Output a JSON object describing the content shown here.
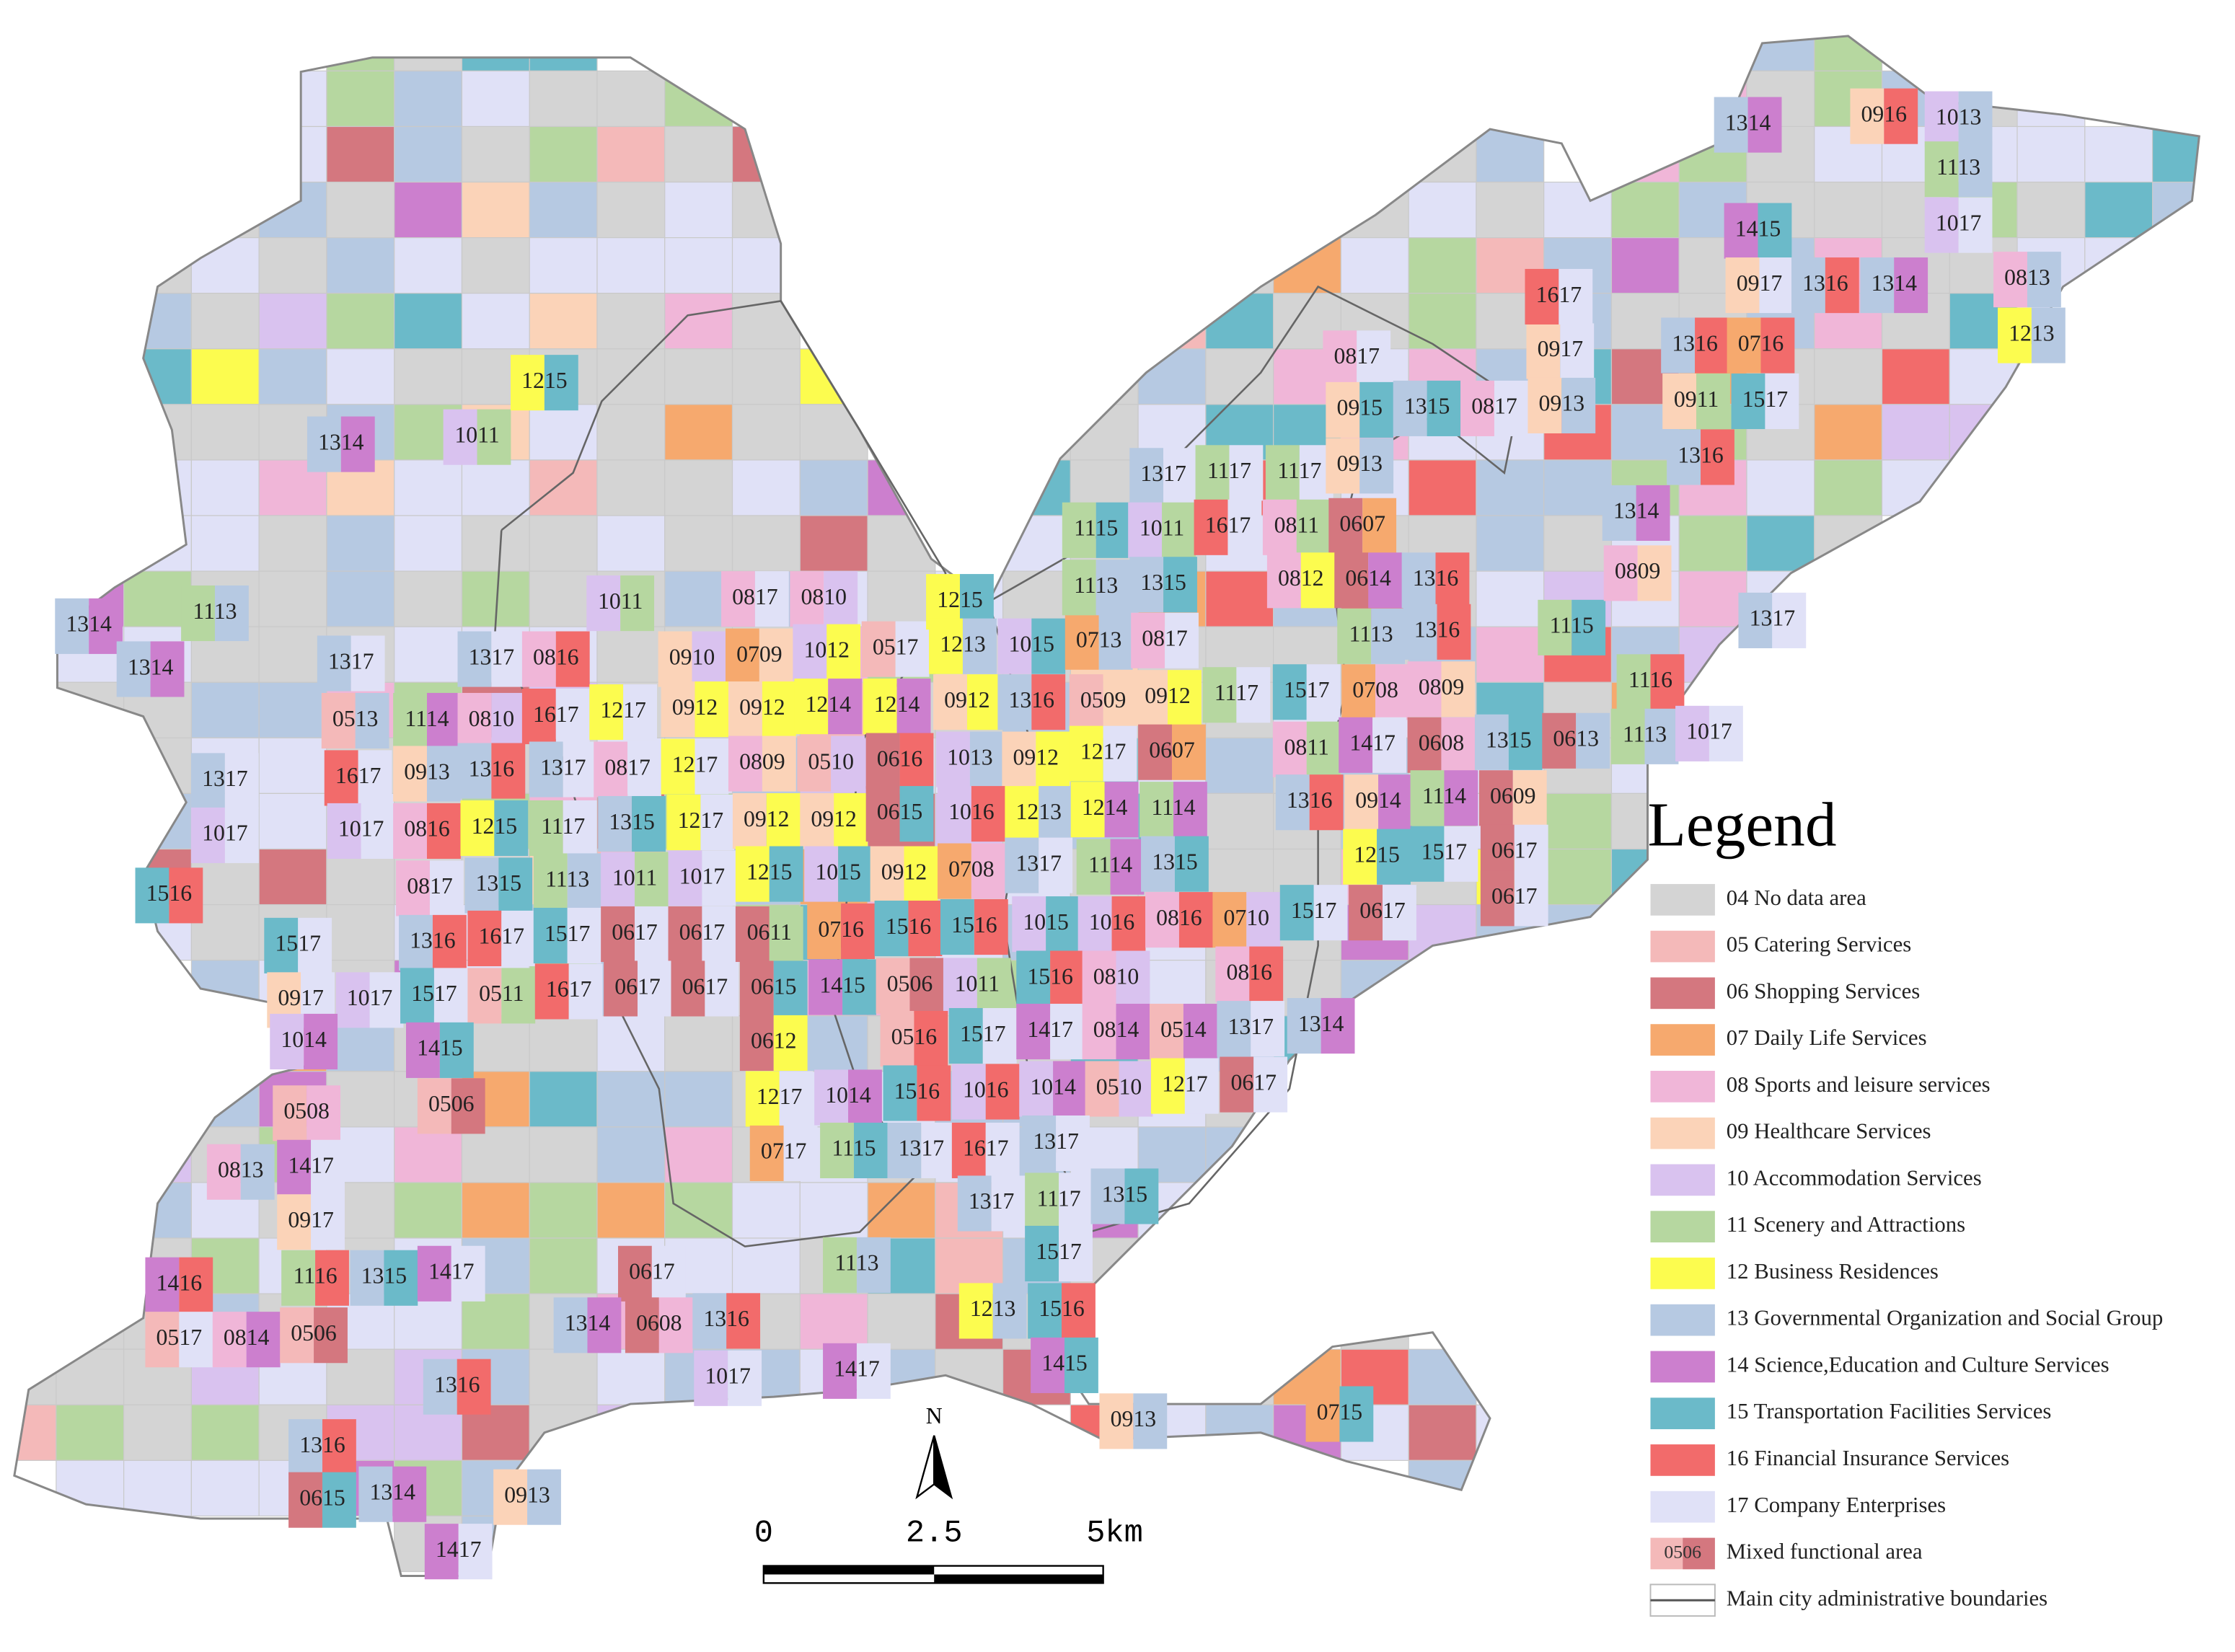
{
  "legend": {
    "title": "Legend",
    "items": [
      {
        "label": "04 No data area",
        "color": "#d4d4d4"
      },
      {
        "label": "05 Catering Services",
        "color": "#f4b9b9"
      },
      {
        "label": "06 Shopping Services",
        "color": "#d4777f"
      },
      {
        "label": "07 Daily Life Services",
        "color": "#f6a96e"
      },
      {
        "label": "08 Sports and leisure services",
        "color": "#f0b6d8"
      },
      {
        "label": "09 Healthcare Services",
        "color": "#fbd3b8"
      },
      {
        "label": "10 Accommodation Services",
        "color": "#d9c2ef"
      },
      {
        "label": "11 Scenery and Attractions",
        "color": "#b6d7a0"
      },
      {
        "label": "12 Business Residences",
        "color": "#fcfc4f"
      },
      {
        "label": "13 Governmental Organization and Social Group",
        "color": "#b6c9e2"
      },
      {
        "label": "14 Science,Education and Culture Services",
        "color": "#cc7fce"
      },
      {
        "label": "15 Transportation Facilities Services",
        "color": "#6bbac9"
      },
      {
        "label": "16 Financial Insurance Services",
        "color": "#f26b6b"
      },
      {
        "label": "17 Company Enterprises",
        "color": "#e0e1f7"
      }
    ],
    "mixed": {
      "code": "0506",
      "label": "Mixed functional area"
    },
    "boundary": {
      "label": "Main city administrative boundaries"
    }
  },
  "north": "N",
  "scale_bar": [
    "0",
    "2.5",
    "5km"
  ],
  "cell_labels": [
    "1314",
    "1113",
    "1314",
    "1317",
    "1317",
    "0816",
    "0513",
    "1114",
    "0810",
    "1617",
    "1217",
    "1317",
    "1617",
    "0913",
    "1316",
    "1317",
    "0817",
    "1017",
    "1017",
    "0816",
    "1215",
    "1117",
    "1315",
    "1516",
    "0817",
    "1315",
    "1113",
    "1011",
    "1017",
    "1517",
    "1316",
    "1617",
    "1517",
    "0617",
    "0617",
    "0917",
    "1017",
    "1517",
    "0511",
    "1617",
    "0617",
    "0617",
    "1014",
    "1415",
    "0506",
    "0508",
    "1417",
    "0813",
    "0917",
    "1416",
    "1116",
    "1315",
    "1417",
    "0517",
    "0814",
    "0506",
    "1316",
    "1316",
    "0615",
    "1314",
    "0913",
    "1417",
    "1314",
    "1011",
    "1215",
    "1011",
    "0817",
    "0810",
    "0910",
    "0709",
    "1012",
    "0517",
    "0912",
    "0912",
    "1214",
    "1214",
    "1217",
    "0809",
    "0510",
    "0616",
    "1217",
    "0912",
    "0912",
    "0615",
    "1215",
    "1015",
    "0912",
    "0708",
    "0611",
    "0716",
    "1516",
    "1516",
    "0615",
    "1415",
    "0506",
    "1011",
    "0612",
    "0516",
    "1517",
    "1217",
    "1014",
    "1516",
    "1016",
    "0717",
    "1115",
    "1317",
    "1617",
    "1215",
    "1213",
    "1015",
    "0713",
    "0817",
    "0912",
    "1316",
    "0509",
    "0912",
    "1013",
    "0912",
    "1217",
    "0607",
    "1016",
    "1213",
    "1214",
    "1114",
    "1317",
    "1114",
    "1315",
    "1015",
    "1016",
    "0816",
    "0710",
    "1516",
    "0810",
    "0816",
    "1417",
    "0814",
    "0514",
    "1317",
    "1314",
    "1014",
    "0510",
    "1217",
    "0617",
    "1317",
    "1317",
    "1117",
    "1315",
    "1517",
    "1113",
    "0617",
    "1314",
    "0608",
    "1316",
    "1213",
    "1516",
    "1017",
    "1417",
    "1415",
    "0913",
    "0715",
    "1317",
    "1117",
    "1117",
    "1115",
    "1011",
    "1617",
    "0811",
    "0607",
    "0812",
    "0614",
    "1316",
    "1113",
    "1315",
    "1113",
    "1316",
    "1117",
    "1517",
    "0708",
    "0809",
    "0811",
    "1417",
    "0608",
    "1315",
    "0613",
    "1316",
    "0914",
    "1114",
    "0609",
    "1215",
    "1517",
    "0617",
    "0617",
    "1517",
    "0617",
    "0817",
    "0917",
    "0915",
    "1315",
    "0817",
    "0913",
    "0913",
    "1617",
    "1115",
    "0809",
    "1314",
    "1317",
    "1116",
    "1113",
    "1017",
    "1314",
    "0916",
    "1013",
    "1113",
    "1017",
    "1415",
    "0917",
    "1316",
    "1314",
    "0813",
    "1316",
    "0716",
    "1213",
    "0911",
    "1517",
    "1316"
  ]
}
